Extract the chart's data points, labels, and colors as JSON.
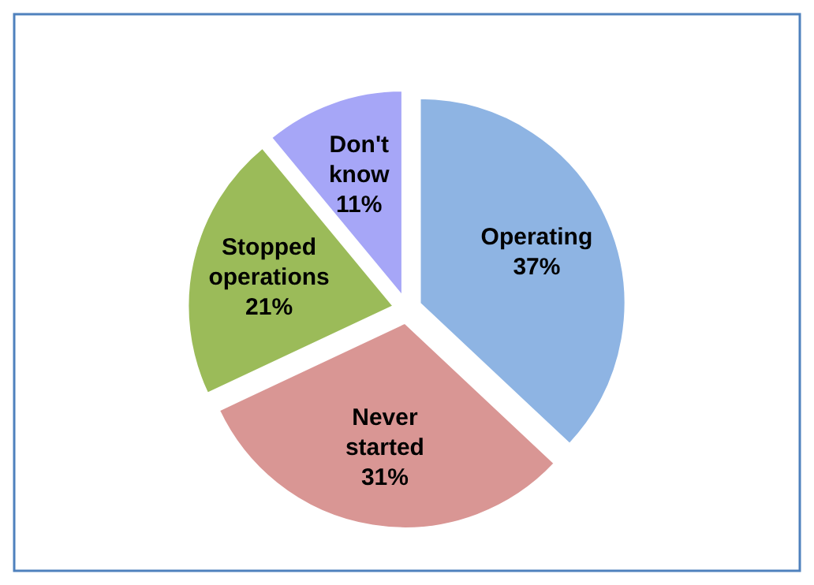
{
  "chart_data": {
    "type": "pie",
    "categories": [
      "Operating",
      "Never started",
      "Stopped operations",
      "Don't know"
    ],
    "values": [
      37,
      31,
      21,
      11
    ],
    "colors": [
      "#8eb4e3",
      "#d99694",
      "#9bbb59",
      "#a6a6f7"
    ],
    "value_labels": [
      "37%",
      "31%",
      "21%",
      "11%"
    ]
  }
}
